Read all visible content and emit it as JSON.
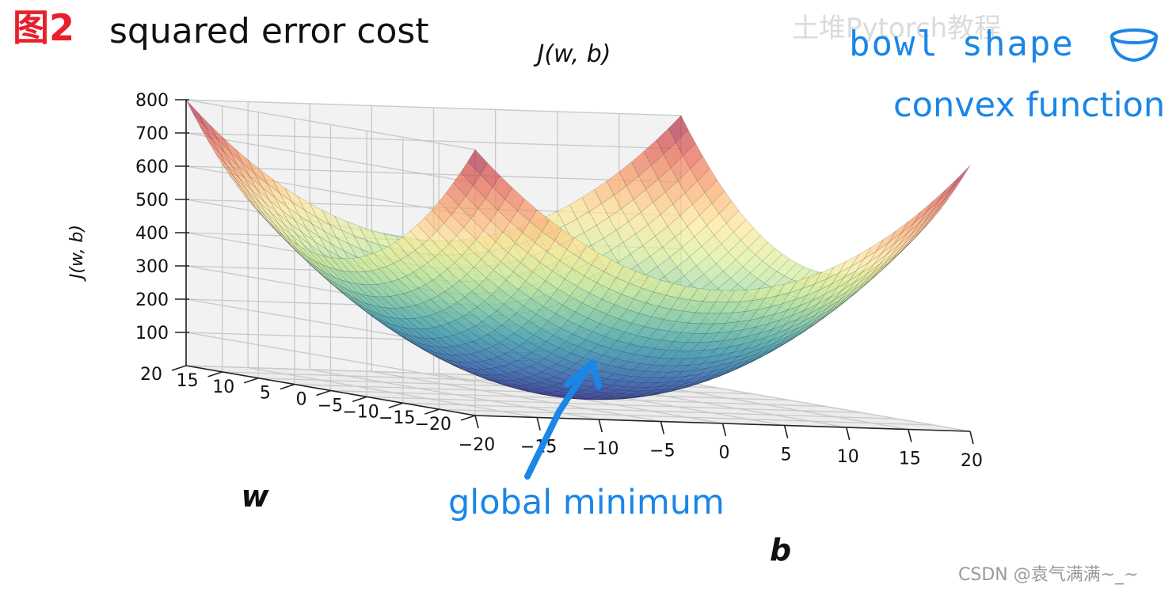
{
  "figure": {
    "tag": "图2",
    "title": "squared error cost"
  },
  "annotations": {
    "bowl": "bowl shape",
    "convex": "convex function",
    "global_min": "global minimum"
  },
  "watermark_top": "土堆Pytorch教程",
  "watermark": "CSDN @袁气满满~_~",
  "colors": {
    "annotation": "#1a86e6",
    "tag_red": "#e8202a",
    "colormap": [
      "#3b3f9a",
      "#3e76b4",
      "#4ca7b0",
      "#8fd1a4",
      "#d9ef9b",
      "#fde89a",
      "#fba76a",
      "#e35d4e",
      "#9b1f4b"
    ]
  },
  "chart_data": {
    "type": "surface3d",
    "title": "J(w, b)",
    "xlabel": "b",
    "ylabel": "w",
    "zlabel": "J(w, b)",
    "function": "J(w,b) = w^2 + b^2 (bowl-shaped convex surface)",
    "b_range": [
      -20,
      20
    ],
    "w_range": [
      -20,
      20
    ],
    "zlim": [
      0,
      800
    ],
    "b_ticks": [
      -20,
      -15,
      -10,
      -5,
      0,
      5,
      10,
      15,
      20
    ],
    "w_ticks": [
      -20,
      -15,
      -10,
      -5,
      0,
      5,
      10,
      15,
      20
    ],
    "z_ticks": [
      100,
      200,
      300,
      400,
      500,
      600,
      700,
      800
    ],
    "tick_labels": {
      "b": [
        "−20",
        "−15",
        "−10",
        "−5",
        "0",
        "5",
        "10",
        "15",
        "20"
      ],
      "w": [
        "−20",
        "−15",
        "−10",
        "−5",
        "0",
        "5",
        "10",
        "15",
        "20"
      ],
      "z": [
        "100",
        "200",
        "300",
        "400",
        "500",
        "600",
        "700",
        "800"
      ]
    },
    "corner_values": [
      {
        "b": -20,
        "w": -20,
        "J": 800
      },
      {
        "b": 20,
        "w": -20,
        "J": 800
      },
      {
        "b": -20,
        "w": 20,
        "J": 800
      },
      {
        "b": 20,
        "w": 20,
        "J": 800
      }
    ],
    "global_minimum": {
      "b": 0,
      "w": 0,
      "J": 0
    },
    "grid": true
  }
}
